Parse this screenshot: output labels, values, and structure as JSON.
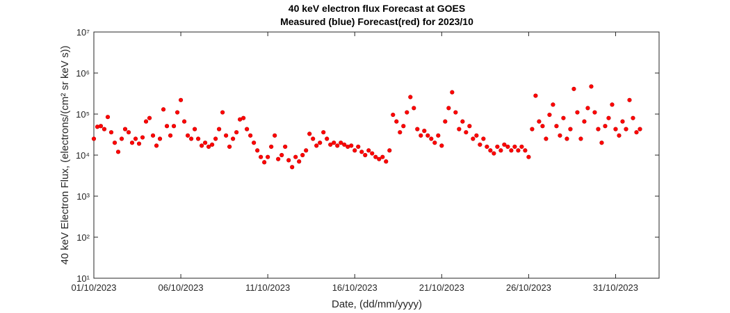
{
  "chart_data": {
    "type": "scatter",
    "title": "40 keV electron flux Forecast at GOES",
    "subtitle": "Measured (blue) Forecast(red) for 2023/10",
    "x_label": "Date, (dd/mm/yyyy)",
    "y_label": "40 keV Electron Flux, (electrons/(cm² sr keV s))",
    "color": "#ff0000",
    "log_y": true,
    "xlim": [
      1,
      33.5
    ],
    "xticks": [
      {
        "value": 1,
        "label": "01/10/2023"
      },
      {
        "value": 6,
        "label": "06/10/2023"
      },
      {
        "value": 11,
        "label": "11/10/2023"
      },
      {
        "value": 16,
        "label": "16/10/2023"
      },
      {
        "value": 21,
        "label": "21/10/2023"
      },
      {
        "value": 26,
        "label": "26/10/2023"
      },
      {
        "value": 31,
        "label": "31/10/2023"
      }
    ],
    "ylim": [
      10,
      10000000
    ],
    "yticks": [
      {
        "value": 10,
        "label": "10¹"
      },
      {
        "value": 100,
        "label": "10²"
      },
      {
        "value": 1000,
        "label": "10³"
      },
      {
        "value": 10000,
        "label": "10⁴"
      },
      {
        "value": 100000,
        "label": "10⁵"
      },
      {
        "value": 1000000,
        "label": "10⁶"
      },
      {
        "value": 10000000,
        "label": "10⁷"
      }
    ],
    "x": [
      1.0,
      1.2,
      1.4,
      1.6,
      1.8,
      2.0,
      2.2,
      2.4,
      2.6,
      2.8,
      3.0,
      3.2,
      3.4,
      3.6,
      3.8,
      4.0,
      4.2,
      4.4,
      4.6,
      4.8,
      5.0,
      5.2,
      5.4,
      5.6,
      5.8,
      6.0,
      6.2,
      6.4,
      6.6,
      6.8,
      7.0,
      7.2,
      7.4,
      7.6,
      7.8,
      8.0,
      8.2,
      8.4,
      8.6,
      8.8,
      9.0,
      9.2,
      9.4,
      9.6,
      9.8,
      10.0,
      10.2,
      10.4,
      10.6,
      10.8,
      11.0,
      11.2,
      11.4,
      11.6,
      11.8,
      12.0,
      12.2,
      12.4,
      12.6,
      12.8,
      13.0,
      13.2,
      13.4,
      13.6,
      13.8,
      14.0,
      14.2,
      14.4,
      14.6,
      14.8,
      15.0,
      15.2,
      15.4,
      15.6,
      15.8,
      16.0,
      16.2,
      16.4,
      16.6,
      16.8,
      17.0,
      17.2,
      17.4,
      17.6,
      17.8,
      18.0,
      18.2,
      18.4,
      18.6,
      18.8,
      19.0,
      19.2,
      19.4,
      19.6,
      19.8,
      20.0,
      20.2,
      20.4,
      20.6,
      20.8,
      21.0,
      21.2,
      21.4,
      21.6,
      21.8,
      22.0,
      22.2,
      22.4,
      22.6,
      22.8,
      23.0,
      23.2,
      23.4,
      23.6,
      23.8,
      24.0,
      24.2,
      24.4,
      24.6,
      24.8,
      25.0,
      25.2,
      25.4,
      25.6,
      25.8,
      26.0,
      26.2,
      26.4,
      26.6,
      26.8,
      27.0,
      27.2,
      27.4,
      27.6,
      27.8,
      28.0,
      28.2,
      28.4,
      28.6,
      28.8,
      29.0,
      29.2,
      29.4,
      29.6,
      29.8,
      30.0,
      30.2,
      30.4,
      30.6,
      30.8,
      31.0,
      31.2,
      31.4,
      31.6,
      31.8,
      32.0,
      32.2,
      32.4
    ],
    "values": [
      25000,
      49000,
      51000,
      43000,
      85000,
      36000,
      20000,
      12000,
      25000,
      43000,
      36000,
      20000,
      25000,
      19000,
      27000,
      66000,
      80000,
      30000,
      17000,
      25000,
      130000,
      51000,
      30000,
      51000,
      110000,
      220000,
      66000,
      30000,
      25000,
      43000,
      25000,
      17000,
      20000,
      16000,
      18000,
      25000,
      43000,
      110000,
      30000,
      16000,
      25000,
      36000,
      74000,
      80000,
      43000,
      30000,
      20000,
      13000,
      9000,
      6700,
      9000,
      16000,
      30000,
      8000,
      10000,
      16000,
      7500,
      5100,
      9000,
      7000,
      10000,
      13000,
      33000,
      25000,
      17000,
      20000,
      36000,
      25000,
      18000,
      20000,
      17000,
      20000,
      18000,
      16000,
      17000,
      13000,
      16000,
      12000,
      10000,
      13000,
      11000,
      9000,
      8000,
      9000,
      7000,
      13000,
      96000,
      66000,
      36000,
      51000,
      110000,
      260000,
      140000,
      43000,
      30000,
      39000,
      30000,
      25000,
      20000,
      30000,
      17000,
      66000,
      140000,
      340000,
      110000,
      43000,
      66000,
      36000,
      51000,
      25000,
      30000,
      18000,
      25000,
      16000,
      13000,
      11000,
      16000,
      13000,
      18000,
      16000,
      13000,
      16000,
      13000,
      16000,
      13000,
      9000,
      43000,
      280000,
      66000,
      51000,
      25000,
      96000,
      170000,
      51000,
      30000,
      80000,
      25000,
      43000,
      410000,
      110000,
      25000,
      66000,
      140000,
      470000,
      110000,
      43000,
      20000,
      51000,
      80000,
      170000,
      43000,
      30000,
      66000,
      43000,
      220000,
      80000,
      36000,
      43000
    ]
  }
}
